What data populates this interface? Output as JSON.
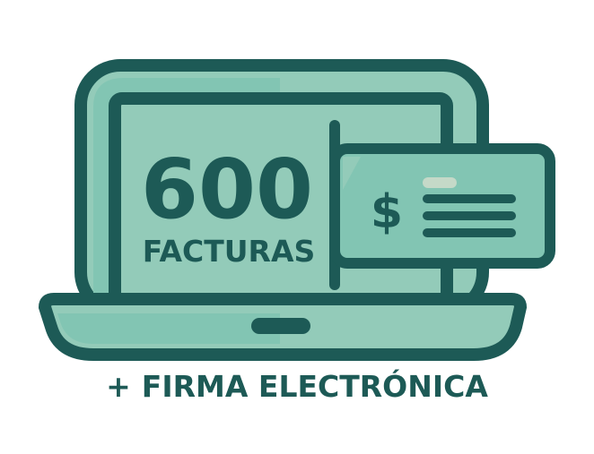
{
  "promo": {
    "quantity": "600",
    "unit_label": "FACTURAS",
    "currency_symbol": "$",
    "plus_symbol": "+",
    "addon_label": "FIRMA ELECTRÓNICA"
  },
  "colors": {
    "dark_teal": "#1d5a56",
    "light_teal": "#93cbb9",
    "mid_teal": "#82c5b3",
    "pale_bar": "#c4d9c8"
  },
  "icons": [
    "laptop-icon",
    "invoice-card-icon",
    "plus-icon"
  ]
}
